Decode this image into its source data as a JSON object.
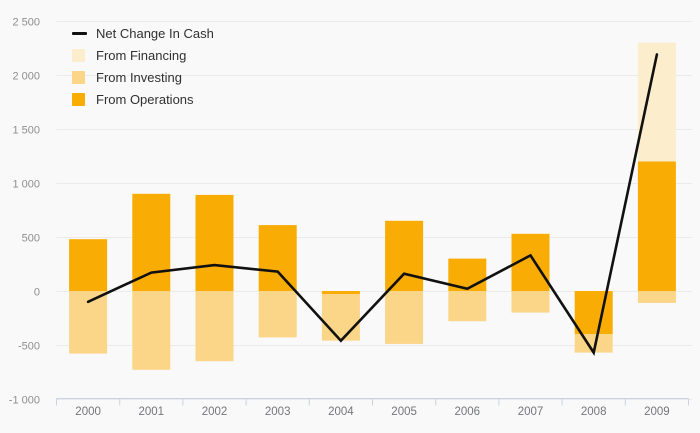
{
  "chart_data": {
    "type": "bar",
    "subtype": "stacked-bars-with-line-overlay",
    "title": "",
    "xlabel": "",
    "ylabel": "",
    "categories": [
      "2000",
      "2001",
      "2002",
      "2003",
      "2004",
      "2005",
      "2006",
      "2007",
      "2008",
      "2009"
    ],
    "series": [
      {
        "name": "Net Change In Cash",
        "type": "line",
        "color": "#111111",
        "values": [
          -100,
          170,
          240,
          180,
          -460,
          160,
          20,
          330,
          -570,
          2190
        ]
      },
      {
        "name": "From Financing",
        "type": "bar",
        "color": "#fceecd",
        "values": [
          0,
          0,
          0,
          0,
          0,
          0,
          0,
          0,
          0,
          1100
        ]
      },
      {
        "name": "From Investing",
        "type": "bar",
        "color": "#fbd588",
        "values": [
          -580,
          -730,
          -650,
          -430,
          -430,
          -490,
          -280,
          -200,
          -170,
          -110
        ]
      },
      {
        "name": "From Operations",
        "type": "bar",
        "color": "#f9ac04",
        "values": [
          480,
          900,
          890,
          610,
          -30,
          650,
          300,
          530,
          -400,
          1200
        ]
      }
    ],
    "stacked": true,
    "ylim": [
      -1000,
      2500
    ],
    "y_ticks": [
      {
        "value": 2500,
        "label": "2 500"
      },
      {
        "value": 2000,
        "label": "2 000"
      },
      {
        "value": 1500,
        "label": "1 500"
      },
      {
        "value": 1000,
        "label": "1 000"
      },
      {
        "value": 500,
        "label": "500"
      },
      {
        "value": 0,
        "label": "0"
      },
      {
        "value": -500,
        "label": "-500"
      },
      {
        "value": -1000,
        "label": "-1 000"
      }
    ],
    "grid": true,
    "legend_position": "top-left"
  },
  "colors": {
    "background": "#f9f9f9",
    "gridline": "#ebebeb",
    "axis_line": "#ccd2e2",
    "y_tick_label": "#8e8e8e",
    "x_tick_label": "#75767a",
    "line_series": "#111111",
    "financing": "#fceecd",
    "investing": "#fbd588",
    "operations": "#f9ac04"
  }
}
